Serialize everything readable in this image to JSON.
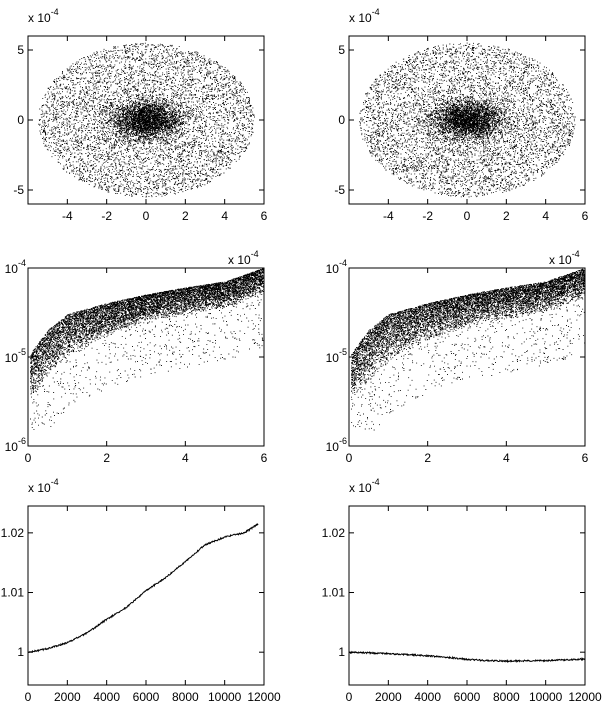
{
  "figure": {
    "layout": "3 rows x 2 columns of panels"
  },
  "chart_data": [
    {
      "panel": "row1-left",
      "type": "scatter",
      "title": "",
      "xlabel": "",
      "ylabel": "",
      "xlim": [
        -6,
        6
      ],
      "ylim": [
        -6,
        6
      ],
      "x_ticks": [
        -4,
        -2,
        0,
        2,
        4,
        6
      ],
      "x_tick_labels": [
        "-4",
        "-2",
        "0",
        "2",
        "4",
        "6"
      ],
      "y_ticks": [
        -5,
        0,
        5
      ],
      "y_tick_labels": [
        "-5",
        "0",
        "5"
      ],
      "y_exponent_label": "x 10",
      "y_exponent_power": "-4",
      "series": [
        {
          "distribution": "dense cloud of ~10000 points centered at (0,0), roughly circular, radius about 5.5, strongly concentrated within radius ~1.5",
          "sample_points": [
            [
              0.0,
              0.0
            ],
            [
              0.5,
              0.3
            ],
            [
              -0.8,
              0.4
            ],
            [
              1.2,
              -0.6
            ],
            [
              -1.5,
              -1.0
            ],
            [
              2.5,
              1.8
            ],
            [
              -3.0,
              2.0
            ],
            [
              3.8,
              -2.2
            ],
            [
              -4.2,
              -1.5
            ],
            [
              4.8,
              0.5
            ],
            [
              0.5,
              5.2
            ],
            [
              -0.5,
              -5.3
            ],
            [
              5.3,
              1.0
            ],
            [
              -5.2,
              -0.8
            ]
          ]
        }
      ],
      "marker": "tiny black dots",
      "grid": false
    },
    {
      "panel": "row1-right",
      "type": "scatter",
      "title": "",
      "xlabel": "",
      "ylabel": "",
      "xlim": [
        -6,
        6
      ],
      "ylim": [
        -6,
        6
      ],
      "x_ticks": [
        -4,
        -2,
        0,
        2,
        4,
        6
      ],
      "x_tick_labels": [
        "-4",
        "-2",
        "0",
        "2",
        "4",
        "6"
      ],
      "y_ticks": [
        -5,
        0,
        5
      ],
      "y_tick_labels": [
        "-5",
        "0",
        "5"
      ],
      "y_exponent_label": "x 10",
      "y_exponent_power": "-4",
      "series": [
        {
          "distribution": "dense cloud of ~10000 points centered at (0,0), roughly circular, radius about 5.5, strongly concentrated within radius ~1.5",
          "sample_points": [
            [
              0.0,
              0.0
            ],
            [
              0.4,
              -0.3
            ],
            [
              -0.7,
              0.5
            ],
            [
              1.0,
              0.8
            ],
            [
              -1.6,
              -0.9
            ],
            [
              2.4,
              -1.9
            ],
            [
              -2.8,
              2.2
            ],
            [
              3.6,
              2.4
            ],
            [
              -4.0,
              -1.8
            ],
            [
              4.6,
              -0.4
            ],
            [
              0.3,
              5.1
            ],
            [
              -0.4,
              -5.2
            ],
            [
              5.2,
              -1.1
            ],
            [
              -5.1,
              0.9
            ]
          ]
        }
      ],
      "marker": "tiny black dots",
      "grid": false
    },
    {
      "panel": "row2-left",
      "type": "scatter",
      "title": "",
      "xlabel": "",
      "ylabel": "",
      "xlim": [
        0,
        6
      ],
      "ylim": [
        1e-06,
        0.0001
      ],
      "yscale": "log",
      "x_ticks": [
        0,
        2,
        4,
        6
      ],
      "x_tick_labels": [
        "0",
        "2",
        "4",
        "6"
      ],
      "x_exponent_label": "x 10",
      "x_exponent_power": "-4",
      "y_ticks": [
        1e-06,
        1e-05,
        0.0001
      ],
      "y_tick_base": "10",
      "y_tick_powers": [
        "-6",
        "-5",
        "-4"
      ],
      "series": [
        {
          "distribution": "band of points rising from ~3e-6 at x=0 to ~1e-4 at x=6, with sparse downward spikes reaching ~3e-6 to 1e-5",
          "trend_upper": [
            [
              0.0,
              1e-05
            ],
            [
              0.5,
              2e-05
            ],
            [
              1.0,
              3e-05
            ],
            [
              2.0,
              4e-05
            ],
            [
              3.0,
              5e-05
            ],
            [
              4.0,
              6e-05
            ],
            [
              5.0,
              7e-05
            ],
            [
              6.0,
              0.0001
            ]
          ],
          "trend_lower": [
            [
              0.0,
              3e-06
            ],
            [
              0.5,
              6e-06
            ],
            [
              1.0,
              1e-05
            ],
            [
              2.0,
              1.7e-05
            ],
            [
              3.0,
              2.5e-05
            ],
            [
              4.0,
              3e-05
            ],
            [
              5.0,
              3.5e-05
            ],
            [
              6.0,
              5e-05
            ]
          ]
        }
      ],
      "marker": "tiny black dots",
      "grid": false
    },
    {
      "panel": "row2-right",
      "type": "scatter",
      "title": "",
      "xlabel": "",
      "ylabel": "",
      "xlim": [
        0,
        6
      ],
      "ylim": [
        1e-06,
        0.0001
      ],
      "yscale": "log",
      "x_ticks": [
        0,
        2,
        4,
        6
      ],
      "x_tick_labels": [
        "0",
        "2",
        "4",
        "6"
      ],
      "x_exponent_label": "x 10",
      "x_exponent_power": "-4",
      "y_ticks": [
        1e-06,
        1e-05,
        0.0001
      ],
      "y_tick_base": "10",
      "y_tick_powers": [
        "-6",
        "-5",
        "-4"
      ],
      "series": [
        {
          "distribution": "band of points rising from ~3e-6 at x=0 to ~1e-4 at x=6, with downward spikes reaching ~3e-6 to 1e-5",
          "trend_upper": [
            [
              0.0,
              1e-05
            ],
            [
              0.5,
              2e-05
            ],
            [
              1.0,
              3e-05
            ],
            [
              2.0,
              4e-05
            ],
            [
              3.0,
              5e-05
            ],
            [
              4.0,
              6e-05
            ],
            [
              5.0,
              7e-05
            ],
            [
              6.0,
              0.0001
            ]
          ],
          "trend_lower": [
            [
              0.0,
              3e-06
            ],
            [
              0.5,
              5e-06
            ],
            [
              1.0,
              9e-06
            ],
            [
              2.0,
              1.5e-05
            ],
            [
              3.0,
              2.2e-05
            ],
            [
              4.0,
              2.6e-05
            ],
            [
              5.0,
              3.2e-05
            ],
            [
              6.0,
              4.5e-05
            ]
          ]
        }
      ],
      "marker": "tiny black dots",
      "grid": false
    },
    {
      "panel": "row3-left",
      "type": "line",
      "title": "",
      "xlabel": "",
      "ylabel": "",
      "xlim": [
        0,
        12000
      ],
      "ylim": [
        0.9945,
        1.0245
      ],
      "x_ticks": [
        0,
        2000,
        4000,
        6000,
        8000,
        10000,
        12000
      ],
      "x_tick_labels": [
        "0",
        "2000",
        "4000",
        "6000",
        "8000",
        "10000",
        "12000"
      ],
      "y_ticks": [
        1.0,
        1.01,
        1.02
      ],
      "y_tick_labels": [
        "1",
        "1.01",
        "1.02"
      ],
      "y_exponent_label": "x 10",
      "y_exponent_power": "-4",
      "series": [
        {
          "x": [
            0,
            1000,
            2000,
            3000,
            4000,
            5000,
            6000,
            7000,
            8000,
            9000,
            10000,
            11000,
            11700
          ],
          "y": [
            0.99995,
            1.0006,
            1.0016,
            1.0032,
            1.0055,
            1.0075,
            1.0103,
            1.0125,
            1.0152,
            1.018,
            1.0193,
            1.02,
            1.0215
          ]
        }
      ],
      "grid": false
    },
    {
      "panel": "row3-right",
      "type": "line",
      "title": "",
      "xlabel": "",
      "ylabel": "",
      "xlim": [
        0,
        12000
      ],
      "ylim": [
        0.9945,
        1.0245
      ],
      "x_ticks": [
        0,
        2000,
        4000,
        6000,
        8000,
        10000,
        12000
      ],
      "x_tick_labels": [
        "0",
        "2000",
        "4000",
        "6000",
        "8000",
        "10000",
        "12000"
      ],
      "y_ticks": [
        1.0,
        1.01,
        1.02
      ],
      "y_tick_labels": [
        "1",
        "1.01",
        "1.02"
      ],
      "y_exponent_label": "x 10",
      "y_exponent_power": "-4",
      "series": [
        {
          "x": [
            0,
            1000,
            2000,
            3000,
            4000,
            5000,
            6000,
            7000,
            8000,
            9000,
            10000,
            11000,
            12000
          ],
          "y": [
            0.99995,
            0.9999,
            0.99975,
            0.9996,
            0.9994,
            0.99915,
            0.9988,
            0.9986,
            0.9985,
            0.99855,
            0.9986,
            0.9987,
            0.99885
          ]
        }
      ],
      "grid": false
    }
  ]
}
